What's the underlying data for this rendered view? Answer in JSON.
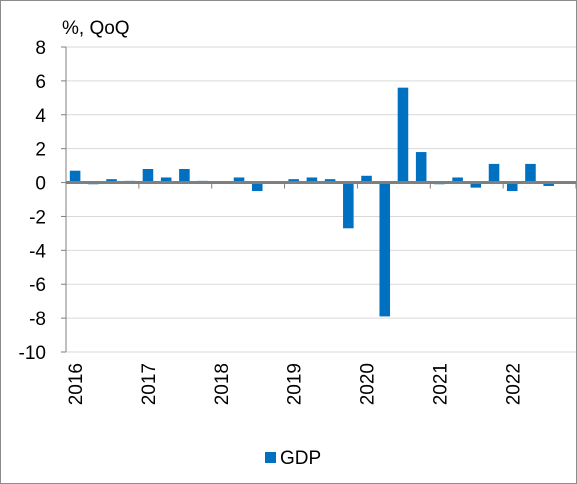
{
  "chart_data": {
    "type": "bar",
    "title": "",
    "ylabel": "%, QoQ",
    "xlabel": "",
    "ylim": [
      -10,
      8
    ],
    "yticks": [
      8,
      6,
      4,
      2,
      0,
      -2,
      -4,
      -6,
      -8,
      -10
    ],
    "ytick_labels": [
      "8",
      "6",
      "4",
      "2",
      "0",
      "-2",
      "-4",
      "-6",
      "-8",
      "-10"
    ],
    "x_tick_labels": [
      "2016",
      "2017",
      "2018",
      "2019",
      "2020",
      "2021",
      "2022"
    ],
    "grid": true,
    "legend": "bottom-center",
    "colors": {
      "bar": "#0070C0",
      "axis": "#7f7f7f",
      "grid": "#d9d9d9"
    },
    "categories": [
      "2016 Q1",
      "2016 Q2",
      "2016 Q3",
      "2016 Q4",
      "2017 Q1",
      "2017 Q2",
      "2017 Q3",
      "2017 Q4",
      "2018 Q1",
      "2018 Q2",
      "2018 Q3",
      "2018 Q4",
      "2019 Q1",
      "2019 Q2",
      "2019 Q3",
      "2019 Q4",
      "2020 Q1",
      "2020 Q2",
      "2020 Q3",
      "2020 Q4",
      "2021 Q1",
      "2021 Q2",
      "2021 Q3",
      "2021 Q4",
      "2022 Q1",
      "2022 Q2",
      "2022 Q3",
      "2022 Q4"
    ],
    "series": [
      {
        "name": "GDP",
        "values": [
          0.7,
          -0.1,
          0.2,
          0.1,
          0.8,
          0.3,
          0.8,
          0.1,
          0.0,
          0.3,
          -0.5,
          0.0,
          0.2,
          0.3,
          0.2,
          -2.7,
          0.4,
          -7.9,
          5.6,
          1.8,
          -0.1,
          0.3,
          -0.3,
          1.1,
          -0.5,
          1.1,
          -0.2,
          0.0
        ]
      }
    ]
  }
}
